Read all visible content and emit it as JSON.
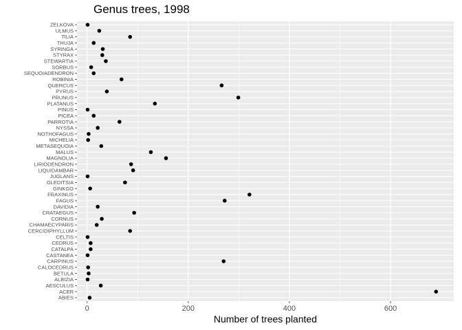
{
  "chart_data": {
    "type": "scatter",
    "title": "Genus trees, 1998",
    "xlabel": "Number of trees planted",
    "ylabel": "",
    "xlim": [
      -20,
      725
    ],
    "x_ticks": [
      0,
      200,
      400,
      600
    ],
    "grid": true,
    "legend": "none",
    "categories": [
      "ABIES",
      "ACER",
      "AESCULUS",
      "ALBIZIA",
      "BETULA",
      "CALOCEDRUS",
      "CARPINUS",
      "CASTANEA",
      "CATALPA",
      "CEDRUS",
      "CELTIS",
      "CERCIDIPHYLLUM",
      "CHAMAECYPARIS",
      "CORNUS",
      "CRATAEGUS",
      "DAVIDIA",
      "FAGUS",
      "FRAXINUS",
      "GINKGO",
      "GLEDITSIA",
      "JUGLANS",
      "LIQUIDAMBAR",
      "LIRIODENDRON",
      "MAGNOLIA",
      "MALUS",
      "METASEQUOIA",
      "MICHELIA",
      "NOTHOFAGUS",
      "NYSSA",
      "PARROTIA",
      "PICEA",
      "PINUS",
      "PLATANUS",
      "PRUNUS",
      "PYRUS",
      "QUERCUS",
      "ROBINIA",
      "SEQUOIADENDRON",
      "SORBUS",
      "STEWARTIA",
      "STYRAX",
      "SYRINGA",
      "THUJA",
      "TILIA",
      "ULMUS",
      "ZELKOVA"
    ],
    "values": [
      5,
      690,
      27,
      1,
      3,
      2,
      270,
      1,
      7,
      7,
      1,
      85,
      19,
      29,
      93,
      21,
      272,
      321,
      6,
      75,
      1,
      91,
      87,
      156,
      126,
      28,
      2,
      3,
      21,
      64,
      13,
      1,
      134,
      299,
      39,
      266,
      68,
      13,
      8,
      37,
      30,
      31,
      13,
      85,
      24,
      1
    ]
  },
  "colors": {
    "panel": "#ebebeb",
    "grid_major": "#ffffff",
    "point": "#000000",
    "tick_text": "#4d4d4d"
  }
}
